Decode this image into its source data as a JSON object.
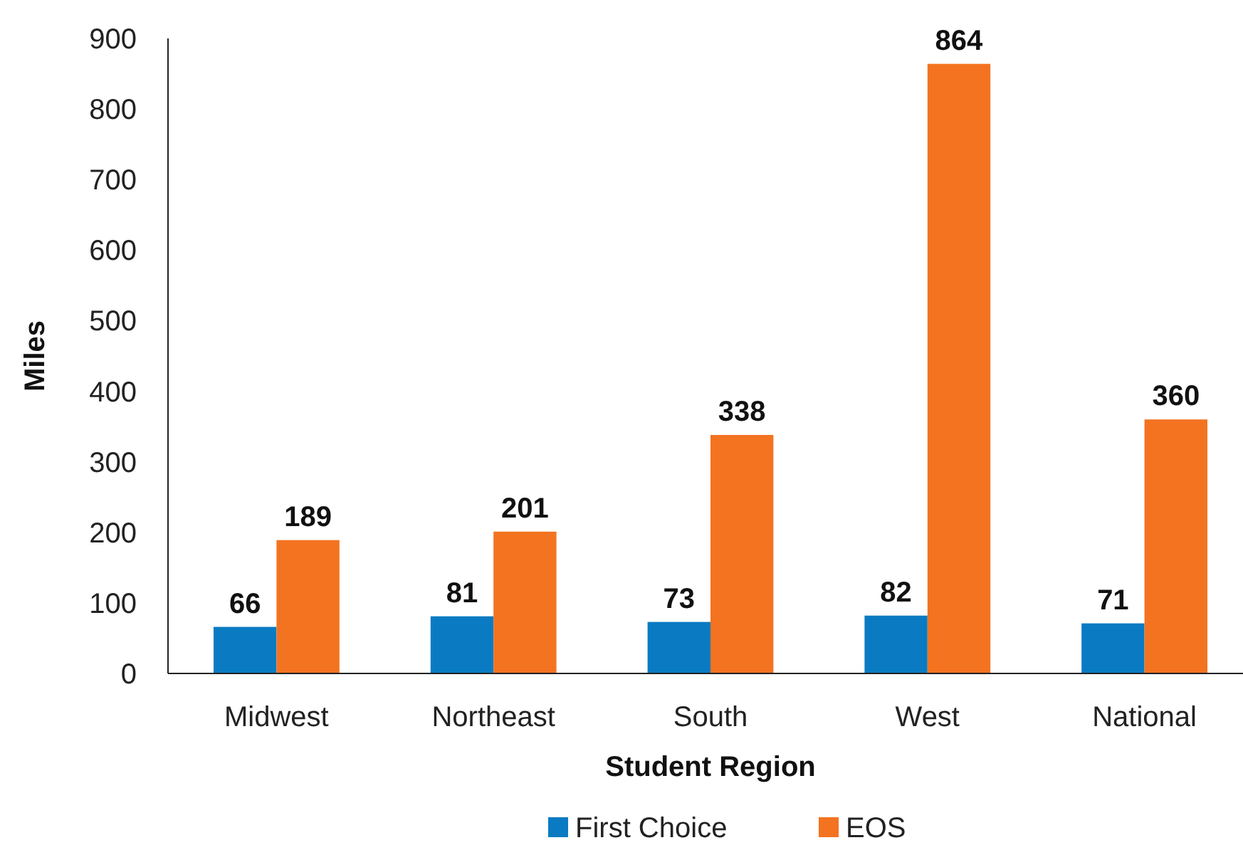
{
  "chart_data": {
    "type": "bar",
    "xlabel": "Student Region",
    "ylabel": "Miles",
    "categories": [
      "Midwest",
      "Northeast",
      "South",
      "West",
      "National"
    ],
    "series": [
      {
        "name": "First Choice",
        "color": "#0a7bc2",
        "values": [
          66,
          81,
          73,
          82,
          71
        ]
      },
      {
        "name": "EOS",
        "color": "#f37321",
        "values": [
          189,
          201,
          338,
          864,
          360
        ]
      }
    ],
    "ylim": [
      0,
      900
    ],
    "yticks": [
      0,
      100,
      200,
      300,
      400,
      500,
      600,
      700,
      800,
      900
    ],
    "data_labels": true,
    "legend": "bottom",
    "grid": false
  }
}
